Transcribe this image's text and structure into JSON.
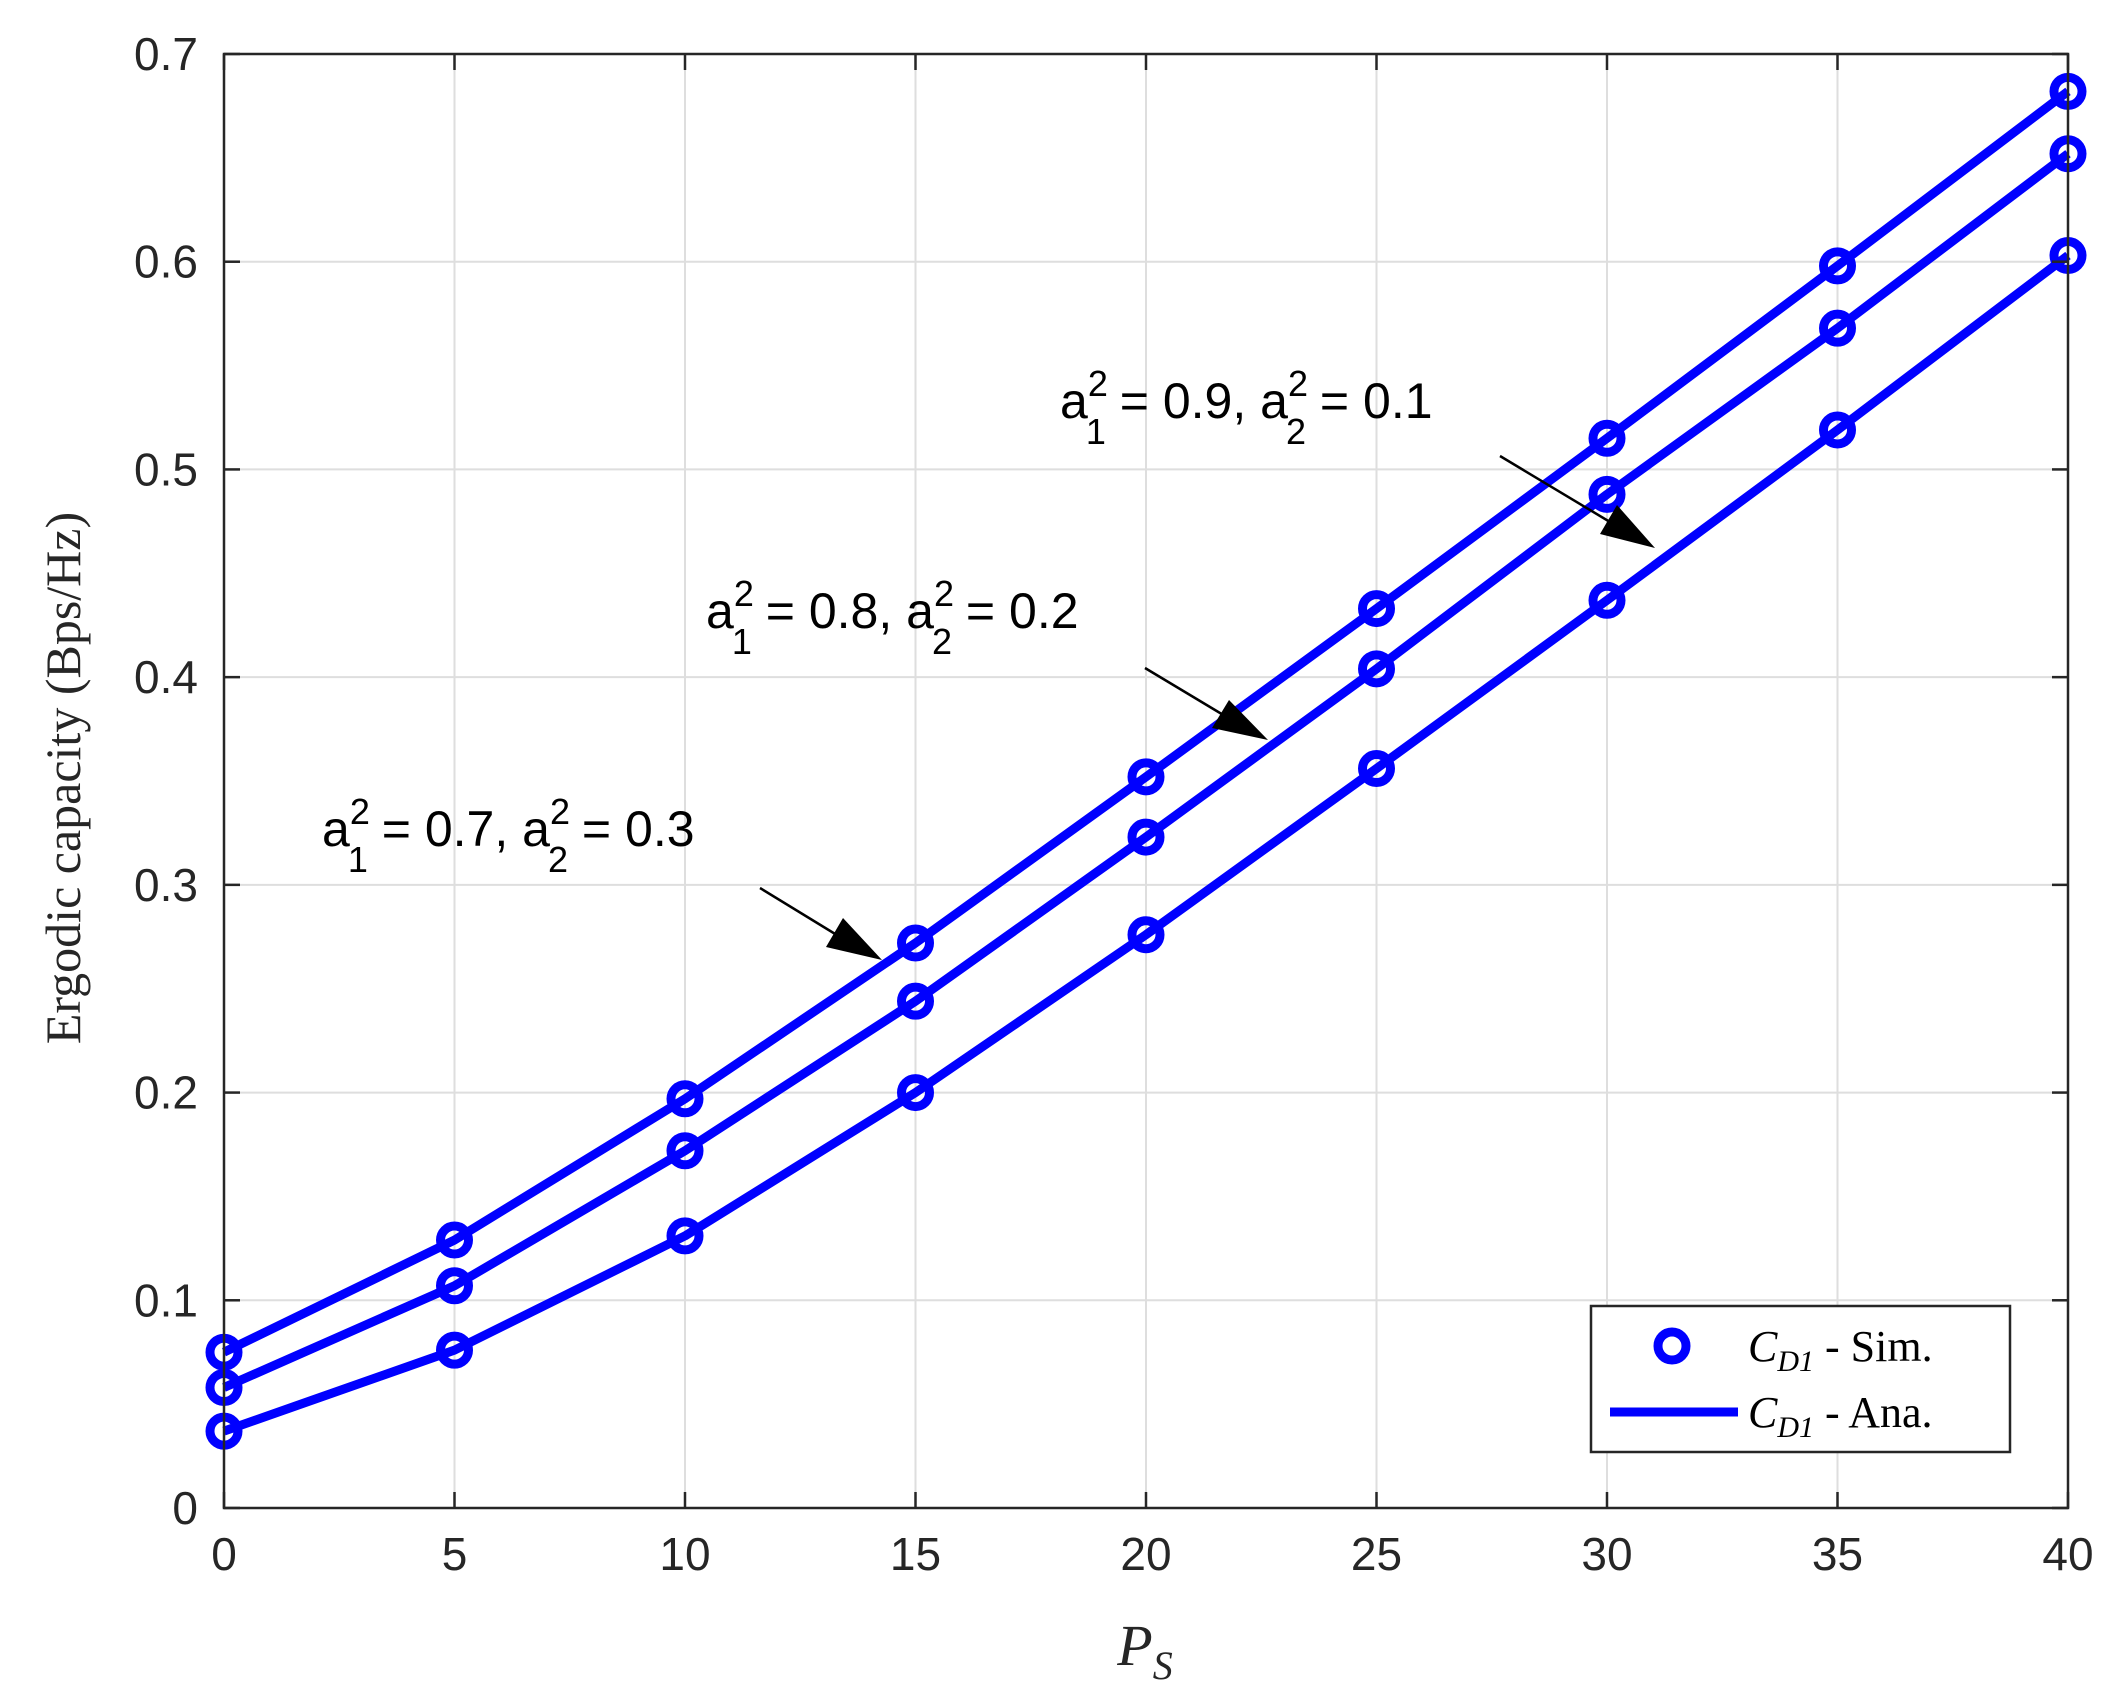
{
  "chart_data": {
    "type": "line",
    "xlabel": "P_S",
    "xlabel_main": "P",
    "xlabel_sub": "S",
    "ylabel": "Ergodic capacity (Bps/Hz)",
    "xlim": [
      0,
      40
    ],
    "ylim": [
      0,
      0.7
    ],
    "xticks": [
      "0",
      "5",
      "10",
      "15",
      "20",
      "25",
      "30",
      "35",
      "40"
    ],
    "yticks": [
      "0",
      "0.1",
      "0.2",
      "0.3",
      "0.4",
      "0.5",
      "0.6",
      "0.7"
    ],
    "grid": true,
    "x": [
      0,
      5,
      10,
      15,
      20,
      25,
      30,
      35,
      40
    ],
    "series": [
      {
        "values": [
          0.075,
          0.129,
          0.197,
          0.272,
          0.352,
          0.433,
          0.515,
          0.598,
          0.682
        ]
      },
      {
        "values": [
          0.058,
          0.107,
          0.172,
          0.244,
          0.323,
          0.404,
          0.488,
          0.568,
          0.652
        ]
      },
      {
        "values": [
          0.037,
          0.076,
          0.131,
          0.2,
          0.276,
          0.356,
          0.437,
          0.519,
          0.603
        ]
      }
    ],
    "annotations": [
      {
        "a1": "a",
        "a1_sub": "1",
        "sup1": "2",
        "a1_val": " = 0.9, ",
        "a2": "a",
        "a2_sub": "2",
        "sup2": "2",
        "a2_val": " = 0.1"
      },
      {
        "a1": "a",
        "a1_sub": "1",
        "sup1": "2",
        "a1_val": " = 0.8, ",
        "a2": "a",
        "a2_sub": "2",
        "sup2": "2",
        "a2_val": " = 0.2"
      },
      {
        "a1": "a",
        "a1_sub": "1",
        "sup1": "2",
        "a1_val": " = 0.7, ",
        "a2": "a",
        "a2_sub": "2",
        "sup2": "2",
        "a2_val": " = 0.3"
      }
    ],
    "legend": {
      "placement": "bottom-right",
      "entries": [
        {
          "main": "C",
          "sub": "D1",
          "rest": " - Sim.",
          "marker": "circle"
        },
        {
          "main": "C",
          "sub": "D1",
          "rest": " - Ana.",
          "marker": "line"
        }
      ]
    },
    "colors": {
      "series": "#0000ff",
      "grid": "#dedede",
      "axis": "#262626",
      "arrow": "#000000"
    }
  }
}
